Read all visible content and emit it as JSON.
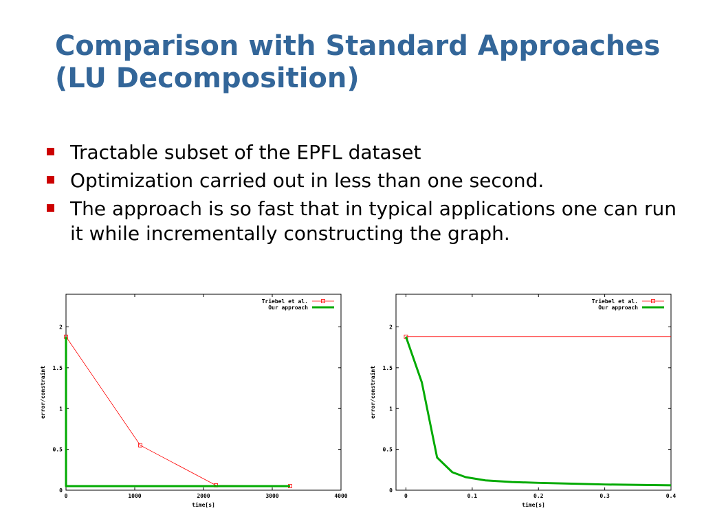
{
  "slide": {
    "title": "Comparison with Standard Approaches (LU Decomposition)",
    "bullets": [
      "Tractable subset of the EPFL dataset",
      "Optimization carried out in less than one second.",
      "The approach is so fast that in typical applications one can run it while incrementally constructing the graph."
    ],
    "bullet_color": "#cc0000",
    "title_color": "#336699"
  },
  "chart_data": [
    {
      "type": "line",
      "xlabel": "time[s]",
      "ylabel": "error/constraint",
      "xlim": [
        0,
        4000
      ],
      "ylim": [
        0,
        2.4
      ],
      "xticks": [
        "0",
        "1000",
        "2000",
        "3000",
        "4000"
      ],
      "yticks": [
        "0",
        "0.5",
        "1",
        "1.5",
        "2"
      ],
      "legend_position": "top-right",
      "series": [
        {
          "name": "Triebel et al.",
          "color": "#ff0000",
          "marker": "square",
          "x": [
            0,
            1080,
            2180,
            3260
          ],
          "y": [
            1.88,
            0.55,
            0.06,
            0.05
          ]
        },
        {
          "name": "Our approach",
          "color": "#00aa00",
          "marker": "none",
          "x": [
            0,
            0.3,
            10,
            3260
          ],
          "y": [
            1.88,
            0.05,
            0.05,
            0.05
          ]
        }
      ]
    },
    {
      "type": "line",
      "xlabel": "time[s]",
      "ylabel": "error/constraint",
      "xlim": [
        -0.015,
        0.4
      ],
      "ylim": [
        0,
        2.4
      ],
      "xticks": [
        "0",
        "0.1",
        "0.2",
        "0.3",
        "0.4"
      ],
      "yticks": [
        "0",
        "0.5",
        "1",
        "1.5",
        "2"
      ],
      "legend_position": "top-right",
      "series": [
        {
          "name": "Triebel et al.",
          "color": "#ff0000",
          "marker": "square",
          "x": [
            0,
            0.4
          ],
          "y": [
            1.88,
            1.88
          ]
        },
        {
          "name": "Our approach",
          "color": "#00aa00",
          "marker": "none",
          "x": [
            0,
            0.012,
            0.024,
            0.047,
            0.07,
            0.09,
            0.12,
            0.16,
            0.2,
            0.25,
            0.3,
            0.35,
            0.4
          ],
          "y": [
            1.88,
            1.6,
            1.32,
            0.4,
            0.22,
            0.16,
            0.12,
            0.1,
            0.09,
            0.08,
            0.07,
            0.065,
            0.06
          ]
        }
      ]
    }
  ]
}
